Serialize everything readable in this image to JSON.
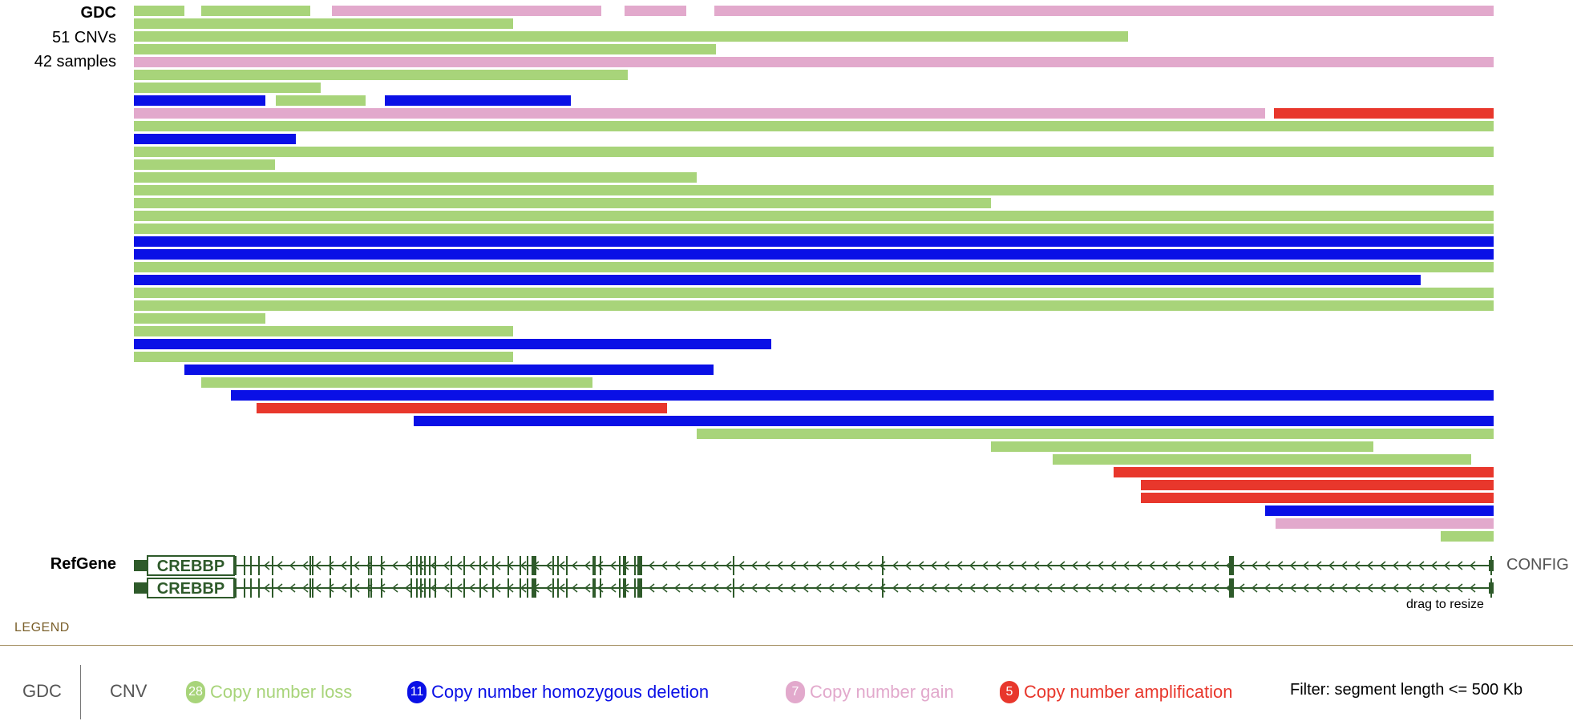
{
  "track": {
    "name": "GDC",
    "cnv_count": "51 CNVs",
    "sample_count": "42 samples"
  },
  "refgene": {
    "label": "RefGene",
    "transcripts": [
      "CREBBP",
      "CREBBP"
    ]
  },
  "config_label": "CONFIG",
  "resize_hint": "drag to resize",
  "legend": {
    "title": "LEGEND",
    "track_name": "GDC",
    "category": "CNV",
    "items": [
      {
        "count": "28",
        "label": "Copy number loss",
        "color": "#a8d47a"
      },
      {
        "count": "11",
        "label": "Copy number homozygous deletion",
        "color": "#0a10e6"
      },
      {
        "count": "7",
        "label": "Copy number gain",
        "color": "#e2a9cc"
      },
      {
        "count": "5",
        "label": "Copy number amplification",
        "color": "#e8372c"
      }
    ],
    "filter": "Filter: segment length <= 500 Kb"
  },
  "colors": {
    "loss": "#a8d47a",
    "homdel": "#0a10e6",
    "gain": "#e2a9cc",
    "amp": "#e8372c",
    "gene": "#2e5a2a"
  }
}
